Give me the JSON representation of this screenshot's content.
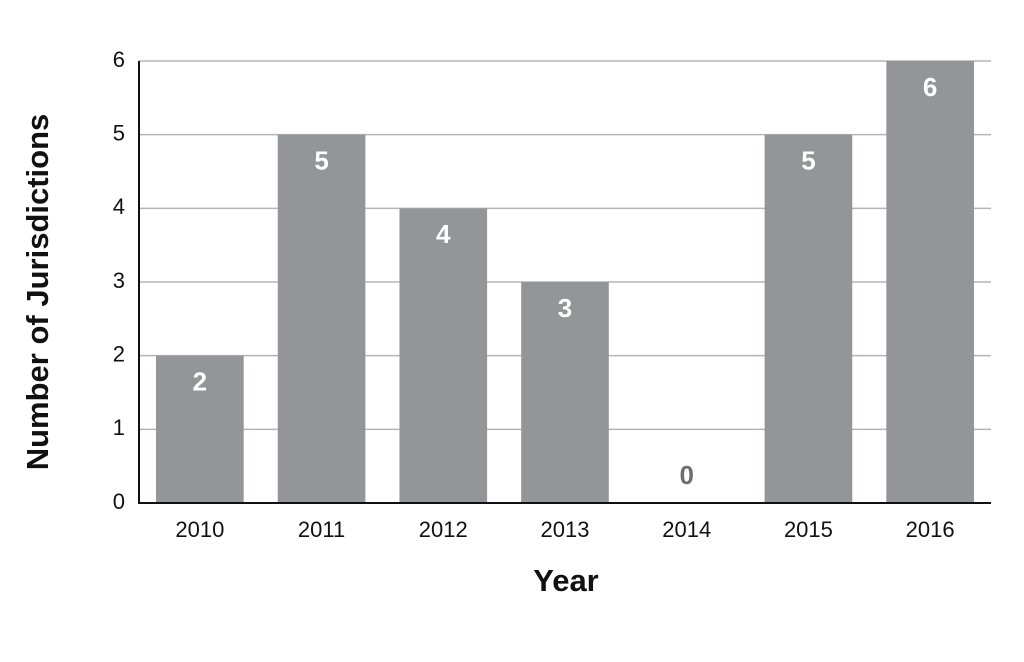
{
  "chart_data": {
    "type": "bar",
    "x_label": "Year",
    "y_label": "Number of Jurisdictions",
    "categories": [
      "2010",
      "2011",
      "2012",
      "2013",
      "2014",
      "2015",
      "2016"
    ],
    "values": [
      2,
      5,
      4,
      3,
      0,
      5,
      6
    ],
    "color": "#939598",
    "ylim": [
      0,
      6
    ],
    "yticks": [
      0,
      1,
      2,
      3,
      4,
      5,
      6
    ],
    "grid": true,
    "data_labels": true
  }
}
